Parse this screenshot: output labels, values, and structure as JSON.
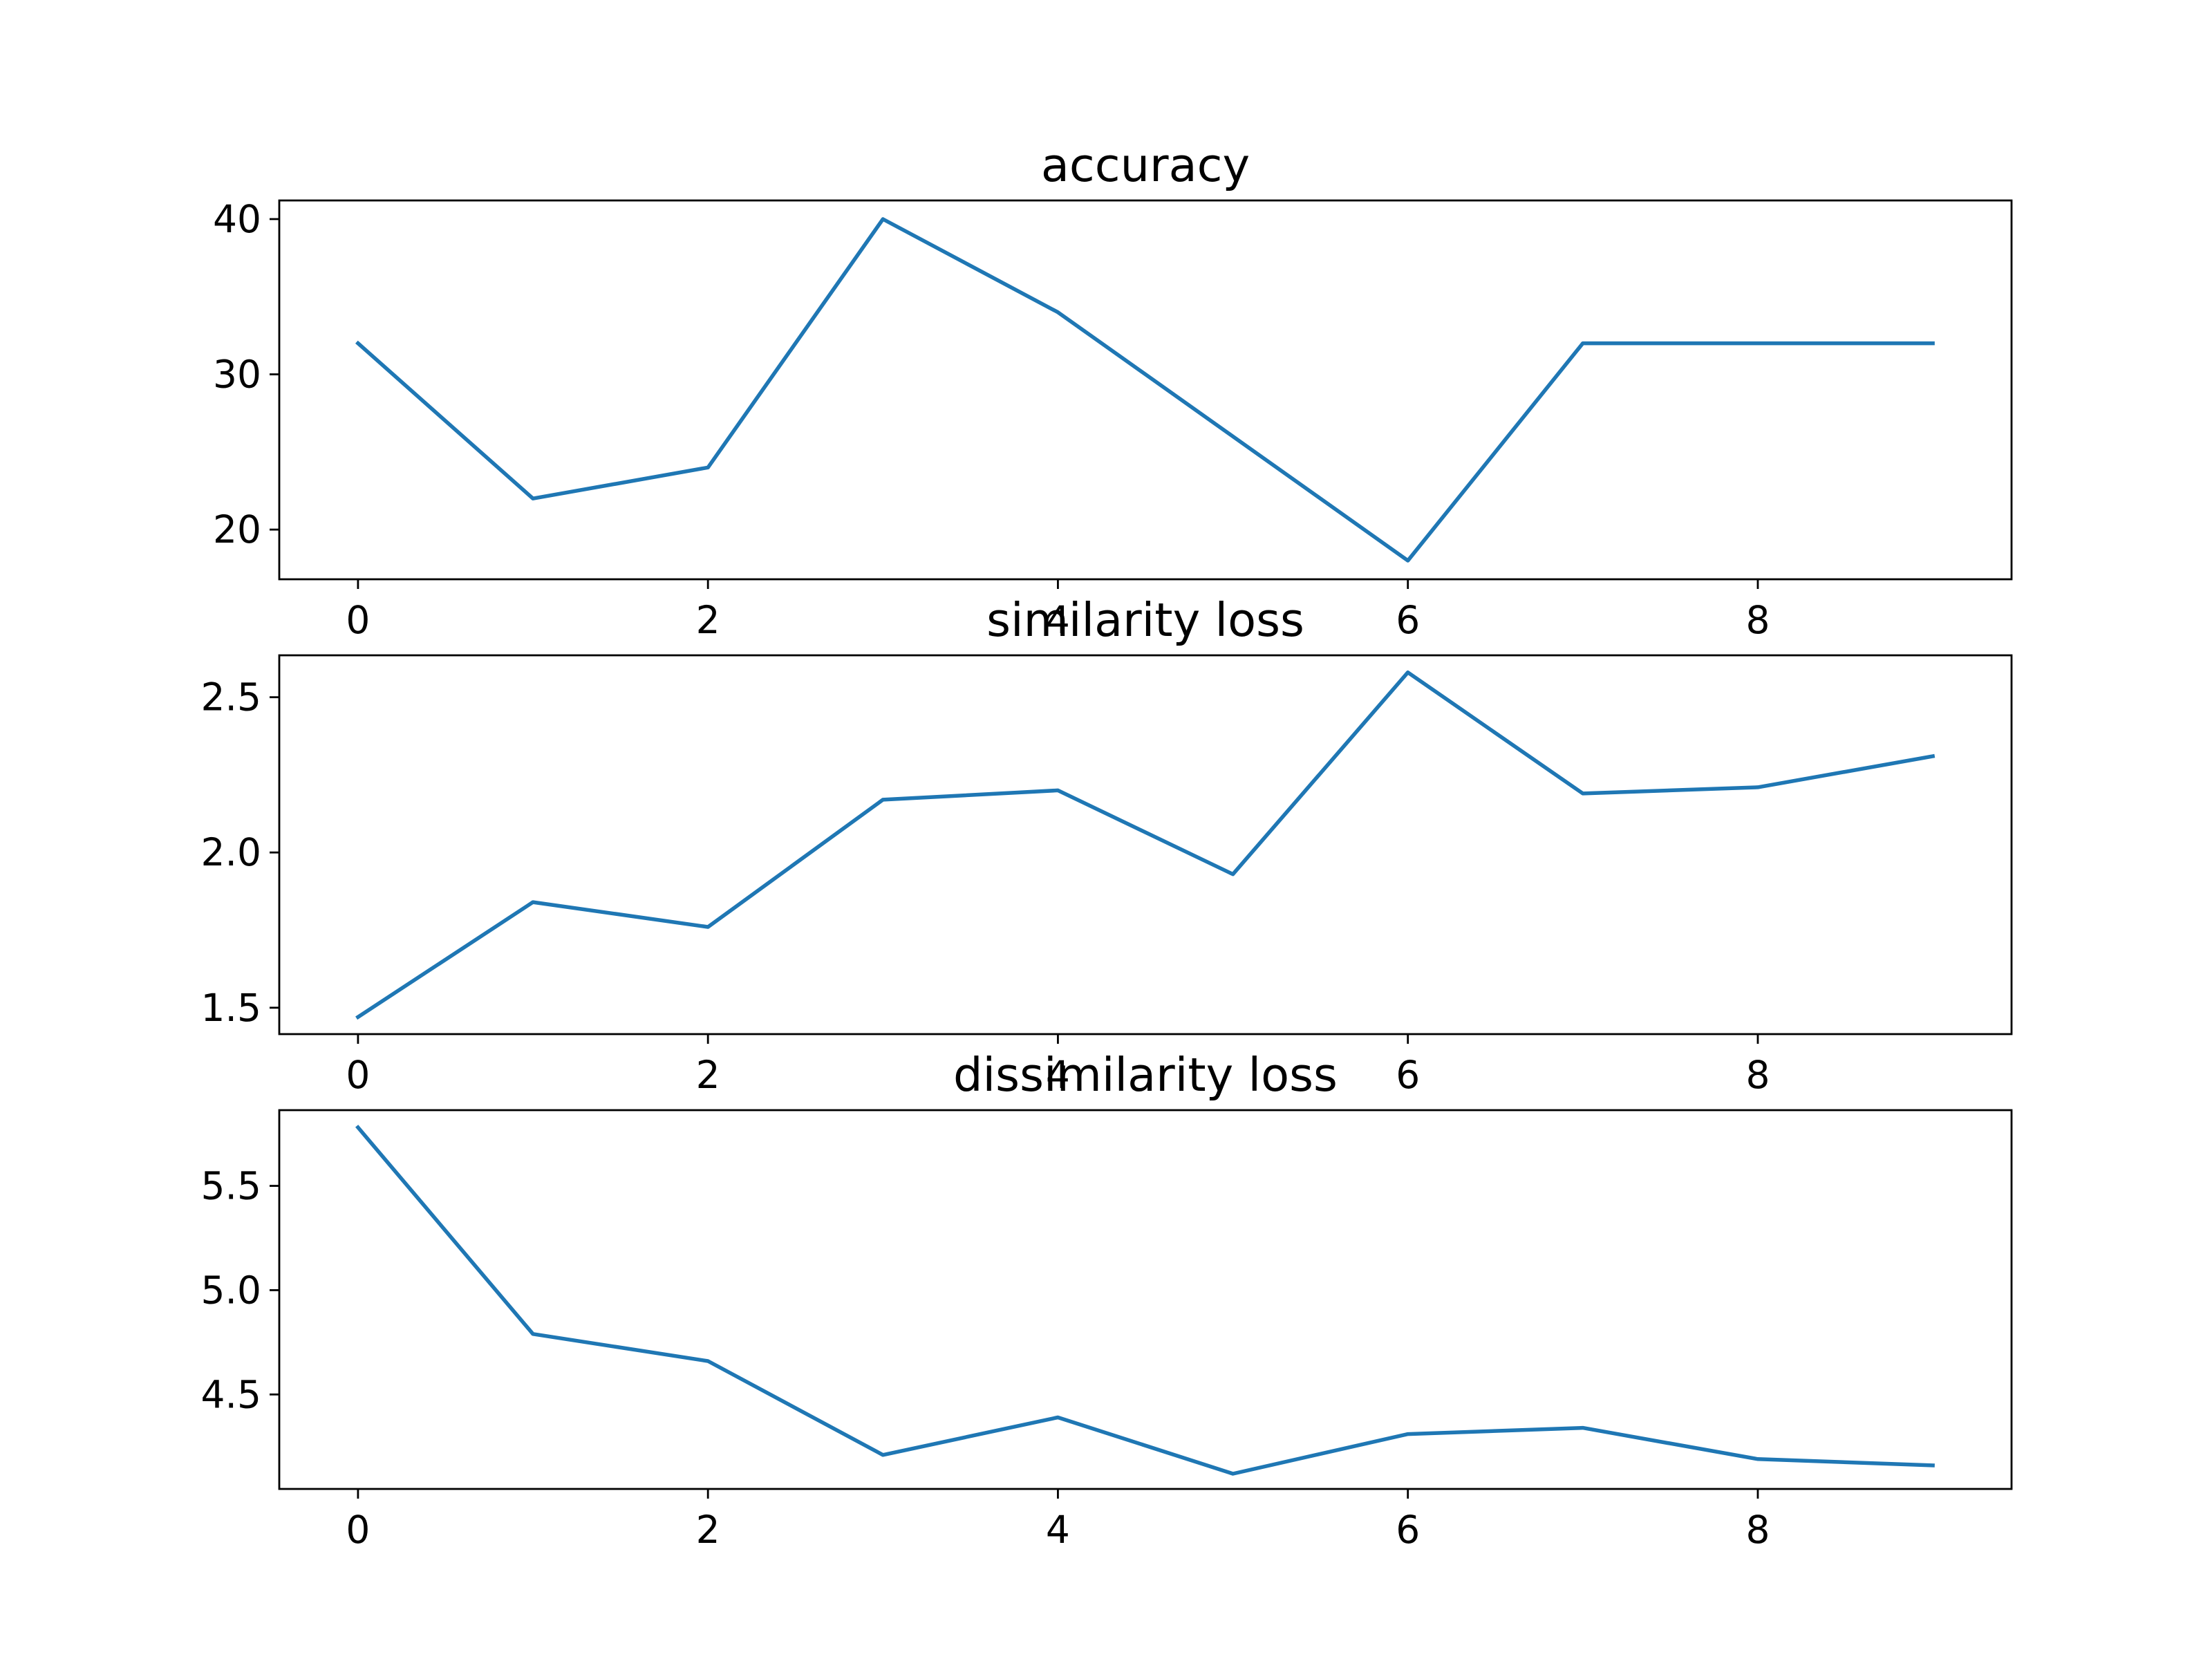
{
  "chart_data": [
    {
      "type": "line",
      "title": "accuracy",
      "x": [
        0,
        1,
        2,
        3,
        4,
        5,
        6,
        7,
        8,
        9
      ],
      "series": [
        {
          "values": [
            32,
            22,
            24,
            40,
            34,
            26,
            18,
            32,
            32,
            32
          ]
        }
      ],
      "xticks": [
        0,
        2,
        4,
        6,
        8
      ],
      "yticks": [
        20,
        30,
        40
      ],
      "ytick_labels": [
        "20",
        "30",
        "40"
      ],
      "xlim": [
        -0.45,
        9.45
      ],
      "ylim": [
        16.8,
        41.2
      ],
      "grid": false,
      "color": "#1f77b4"
    },
    {
      "type": "line",
      "title": "similarity loss",
      "x": [
        0,
        1,
        2,
        3,
        4,
        5,
        6,
        7,
        8,
        9
      ],
      "series": [
        {
          "values": [
            1.47,
            1.84,
            1.76,
            2.17,
            2.2,
            1.93,
            2.58,
            2.19,
            2.21,
            2.31
          ]
        }
      ],
      "xticks": [
        0,
        2,
        4,
        6,
        8
      ],
      "yticks": [
        1.5,
        2.0,
        2.5
      ],
      "ytick_labels": [
        "1.5",
        "2.0",
        "2.5"
      ],
      "xlim": [
        -0.45,
        9.45
      ],
      "ylim": [
        1.415,
        2.635
      ],
      "grid": false,
      "color": "#1f77b4"
    },
    {
      "type": "line",
      "title": "dissimilarity loss",
      "x": [
        0,
        1,
        2,
        3,
        4,
        5,
        6,
        7,
        8,
        9
      ],
      "series": [
        {
          "values": [
            5.78,
            4.79,
            4.66,
            4.21,
            4.39,
            4.12,
            4.31,
            4.34,
            4.19,
            4.16
          ]
        }
      ],
      "xticks": [
        0,
        2,
        4,
        6,
        8
      ],
      "yticks": [
        4.5,
        5.0,
        5.5
      ],
      "ytick_labels": [
        "4.5",
        "5.0",
        "5.5"
      ],
      "xlim": [
        -0.45,
        9.45
      ],
      "ylim": [
        4.047,
        5.863
      ],
      "grid": false,
      "color": "#1f77b4"
    }
  ]
}
